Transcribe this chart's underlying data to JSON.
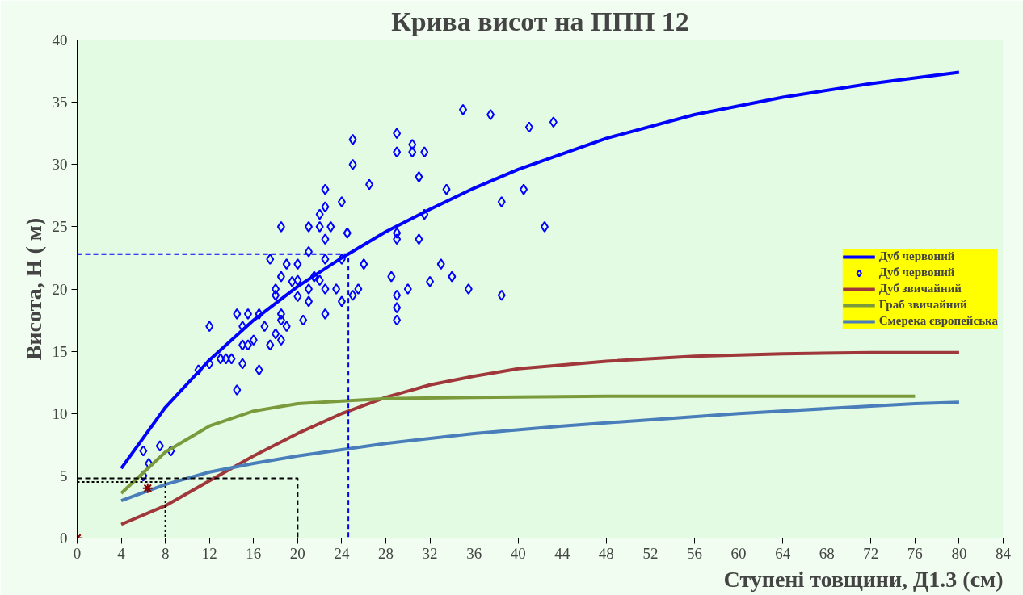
{
  "chart_data": {
    "type": "line",
    "title": "Крива висот на ППП 12",
    "xlabel": "Ступені товщини, Д1.3 (см)",
    "ylabel": "Висота, Н ( м)",
    "xlim": [
      0,
      84
    ],
    "xticks": [
      0,
      4,
      8,
      12,
      16,
      20,
      24,
      28,
      32,
      36,
      40,
      44,
      48,
      52,
      56,
      60,
      64,
      68,
      72,
      76,
      80,
      84
    ],
    "ylim": [
      0,
      40
    ],
    "yticks": [
      0,
      5,
      10,
      15,
      20,
      25,
      30,
      35,
      40
    ],
    "grid": false,
    "legend": "right",
    "series": [
      {
        "name": "Дуб червоний",
        "color": "#0000ff",
        "x": [
          4,
          8,
          12,
          16,
          20,
          24,
          28,
          32,
          36,
          40,
          48,
          56,
          64,
          72,
          80
        ],
        "values": [
          5.6,
          10.5,
          14.3,
          17.5,
          20.2,
          22.5,
          24.6,
          26.4,
          28.1,
          29.6,
          32.1,
          34.0,
          35.4,
          36.5,
          37.4
        ]
      },
      {
        "name": "Дуб червоний",
        "type": "scatter",
        "marker": "diamond",
        "color": "#0000ff",
        "x": [
          6,
          6.5,
          7.5,
          8.5,
          6,
          25,
          25,
          22.5,
          24,
          22.5,
          22,
          18.5,
          21,
          22,
          23,
          22.5,
          24.5,
          21,
          17.5,
          22.5,
          24,
          19,
          20,
          18.5,
          19.5,
          20,
          21.5,
          22,
          18,
          18,
          21,
          22.5,
          23.5,
          25,
          24,
          20,
          21,
          14.5,
          15.5,
          16.5,
          18.5,
          22.5,
          15,
          18.5,
          19,
          17,
          20.5,
          12,
          18,
          18.5,
          16,
          15,
          15.5,
          17.5,
          13,
          13.5,
          14,
          12,
          11,
          15,
          16.5,
          14.5,
          35,
          37.5,
          41,
          43.2,
          29,
          29,
          30.4,
          30.4,
          31.5,
          31,
          26.5,
          33.5,
          40.5,
          38.5,
          31.5,
          42.4,
          29,
          29,
          31,
          26,
          33,
          28.5,
          34,
          32,
          25.5,
          30,
          35.5,
          29,
          38.5,
          29,
          29
        ],
        "values": [
          7,
          6,
          7.4,
          7,
          5,
          32,
          30,
          28,
          27,
          26.6,
          26,
          25,
          25,
          25,
          25,
          24,
          24.5,
          23,
          22.4,
          22.4,
          22.4,
          22,
          22,
          21,
          20.6,
          20.7,
          21,
          20.7,
          20,
          19.5,
          20,
          20,
          20,
          19.5,
          19,
          19.4,
          19,
          18,
          18,
          18,
          18,
          18,
          17,
          17.5,
          17,
          17,
          17.5,
          17,
          16.4,
          15.9,
          15.9,
          15.5,
          15.5,
          15.5,
          14.4,
          14.4,
          14.4,
          14,
          13.5,
          14,
          13.5,
          11.9,
          34.4,
          34,
          33,
          33.4,
          32.5,
          31,
          31.6,
          31,
          31,
          29,
          28.4,
          28,
          28,
          27,
          26,
          25,
          24.5,
          24,
          24,
          22,
          22,
          21,
          21,
          20.6,
          20,
          20,
          20,
          19.5,
          19.5,
          18.5,
          17.5
        ]
      },
      {
        "name": "Дуб звичайний",
        "color": "#a0373a",
        "x": [
          4,
          8,
          12,
          16,
          20,
          24,
          28,
          32,
          36,
          40,
          48,
          56,
          64,
          72,
          80
        ],
        "values": [
          1.1,
          2.6,
          4.6,
          6.6,
          8.4,
          10.0,
          11.3,
          12.3,
          13.0,
          13.6,
          14.2,
          14.6,
          14.8,
          14.9,
          14.9
        ]
      },
      {
        "name": "Граб звичайний",
        "color": "#7a9a3c",
        "x": [
          4,
          8,
          12,
          16,
          20,
          24,
          28,
          36,
          48,
          60,
          76
        ],
        "values": [
          3.6,
          6.9,
          9.0,
          10.2,
          10.8,
          11.0,
          11.2,
          11.3,
          11.4,
          11.4,
          11.4
        ]
      },
      {
        "name": "Смерека європейська",
        "color": "#4a7ebb",
        "x": [
          4,
          8,
          12,
          16,
          20,
          24,
          28,
          36,
          44,
          52,
          60,
          68,
          76,
          80
        ],
        "values": [
          3.0,
          4.3,
          5.3,
          6.0,
          6.6,
          7.1,
          7.6,
          8.4,
          9.0,
          9.5,
          10.0,
          10.4,
          10.8,
          10.9
        ]
      },
      {
        "line_style": "dashed",
        "color": "#0000ff",
        "x": [
          0,
          24.6,
          24.6
        ],
        "values": [
          22.8,
          22.8,
          0
        ]
      },
      {
        "line_style": "dashed",
        "color": "#000000",
        "x": [
          0,
          20,
          20
        ],
        "values": [
          4.8,
          4.8,
          0
        ]
      },
      {
        "line_style": "dotted",
        "color": "#000000",
        "x": [
          0,
          8,
          8
        ],
        "values": [
          4.5,
          4.5,
          0
        ]
      },
      {
        "type": "scatter",
        "marker": "cross",
        "color": "#8b0000",
        "x": [
          0,
          6.4
        ],
        "values": [
          0,
          4
        ]
      }
    ]
  }
}
